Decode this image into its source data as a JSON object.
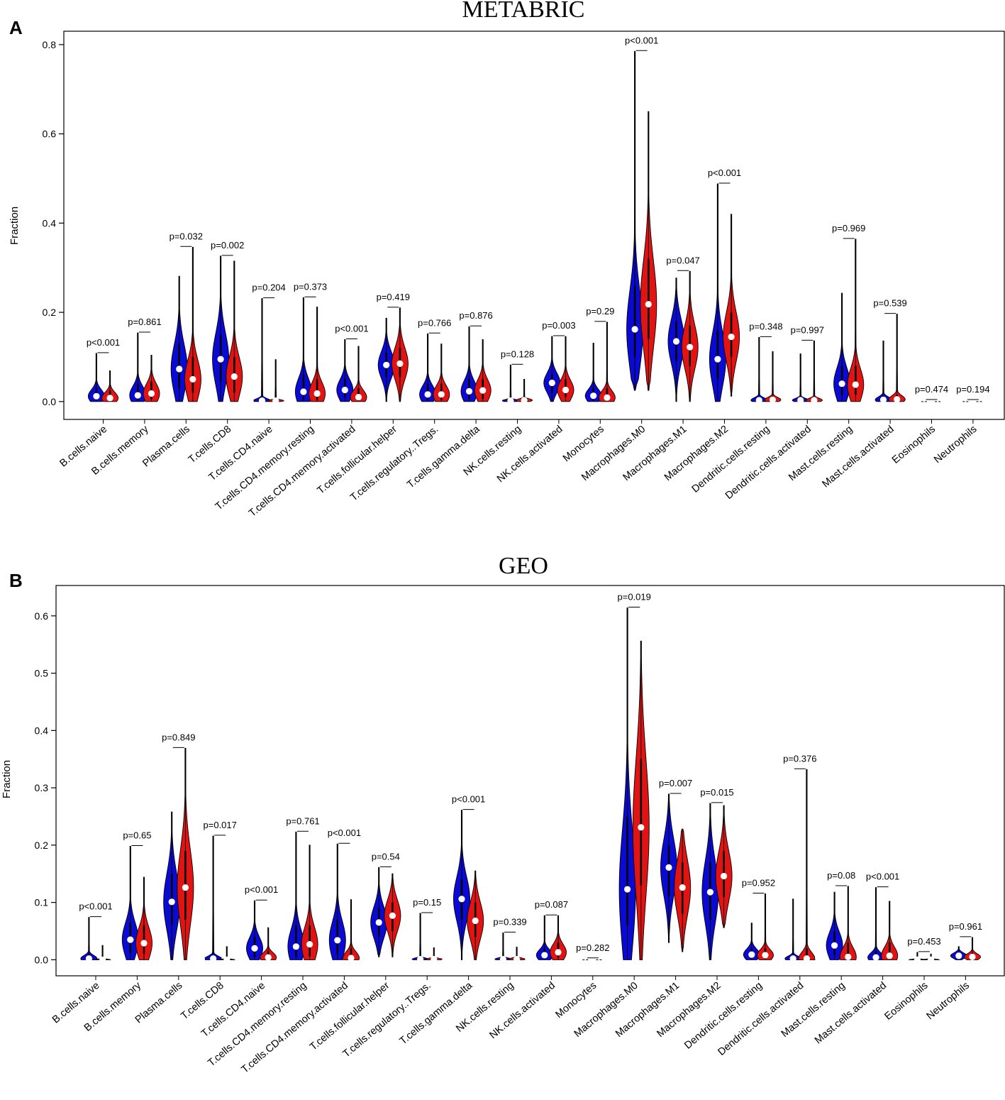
{
  "chart_data": [
    {
      "type": "violin",
      "panel": "A",
      "title": "METABRIC",
      "xlabel": "",
      "ylabel": "Fraction",
      "ylim": [
        -0.04,
        0.83
      ],
      "yticks": [
        0.0,
        0.2,
        0.4,
        0.6,
        0.8
      ],
      "ytick_labels": [
        "0.0",
        "0.2",
        "0.4",
        "0.6",
        "0.8"
      ],
      "series_colors": {
        "group1": "#0a0ad2",
        "group2": "#e21313"
      },
      "categories": [
        {
          "name": "B.cells.naive",
          "p": "p<0.001",
          "g1": {
            "max": 0.108,
            "med": 0.012,
            "q1": 0.003,
            "q3": 0.03
          },
          "g2": {
            "max": 0.069,
            "med": 0.008,
            "q1": 0.002,
            "q3": 0.025
          }
        },
        {
          "name": "B.cells.memory",
          "p": "p=0.861",
          "g1": {
            "max": 0.154,
            "med": 0.014,
            "q1": 0.003,
            "q3": 0.04
          },
          "g2": {
            "max": 0.104,
            "med": 0.018,
            "q1": 0.005,
            "q3": 0.045
          }
        },
        {
          "name": "Plasma.cells",
          "p": "p=0.032",
          "g1": {
            "max": 0.281,
            "med": 0.073,
            "q1": 0.03,
            "q3": 0.13
          },
          "g2": {
            "max": 0.346,
            "med": 0.05,
            "q1": 0.02,
            "q3": 0.1
          }
        },
        {
          "name": "T.cells.CD8",
          "p": "p=0.002",
          "g1": {
            "max": 0.326,
            "med": 0.095,
            "q1": 0.045,
            "q3": 0.15
          },
          "g2": {
            "max": 0.315,
            "med": 0.056,
            "q1": 0.02,
            "q3": 0.1
          }
        },
        {
          "name": "T.cells.CD4.naive",
          "p": "p=0.204",
          "g1": {
            "max": 0.231,
            "med": 0.002,
            "q1": 0.0,
            "q3": 0.005
          },
          "g2": {
            "max": 0.094,
            "med": 0.002,
            "q1": 0.0,
            "q3": 0.004
          }
        },
        {
          "name": "T.cells.CD4.memory.resting",
          "p": "p=0.373",
          "g1": {
            "max": 0.233,
            "med": 0.022,
            "q1": 0.005,
            "q3": 0.06
          },
          "g2": {
            "max": 0.212,
            "med": 0.018,
            "q1": 0.004,
            "q3": 0.05
          }
        },
        {
          "name": "T.cells.CD4.memory.activated",
          "p": "p<0.001",
          "g1": {
            "max": 0.139,
            "med": 0.026,
            "q1": 0.008,
            "q3": 0.05
          },
          "g2": {
            "max": 0.124,
            "med": 0.01,
            "q1": 0.002,
            "q3": 0.03
          }
        },
        {
          "name": "T.cells.follicular.helper",
          "p": "p=0.419",
          "g1": {
            "max": 0.187,
            "med": 0.082,
            "q1": 0.055,
            "q3": 0.11
          },
          "g2": {
            "max": 0.21,
            "med": 0.085,
            "q1": 0.055,
            "q3": 0.12
          }
        },
        {
          "name": "T.cells.regulatory..Tregs.",
          "p": "p=0.766",
          "g1": {
            "max": 0.152,
            "med": 0.016,
            "q1": 0.004,
            "q3": 0.04
          },
          "g2": {
            "max": 0.129,
            "med": 0.016,
            "q1": 0.004,
            "q3": 0.04
          }
        },
        {
          "name": "T.cells.gamma.delta",
          "p": "p=0.876",
          "g1": {
            "max": 0.168,
            "med": 0.023,
            "q1": 0.006,
            "q3": 0.05
          },
          "g2": {
            "max": 0.139,
            "med": 0.025,
            "q1": 0.006,
            "q3": 0.05
          }
        },
        {
          "name": "NK.cells.resting",
          "p": "p=0.128",
          "g1": {
            "max": 0.082,
            "med": 0.002,
            "q1": 0.0,
            "q3": 0.005
          },
          "g2": {
            "max": 0.05,
            "med": 0.003,
            "q1": 0.0,
            "q3": 0.006
          }
        },
        {
          "name": "NK.cells.activated",
          "p": "p=0.003",
          "g1": {
            "max": 0.146,
            "med": 0.042,
            "q1": 0.02,
            "q3": 0.06
          },
          "g2": {
            "max": 0.146,
            "med": 0.026,
            "q1": 0.01,
            "q3": 0.05
          }
        },
        {
          "name": "Monocytes",
          "p": "p=0.29",
          "g1": {
            "max": 0.131,
            "med": 0.013,
            "q1": 0.003,
            "q3": 0.03
          },
          "g2": {
            "max": 0.178,
            "med": 0.009,
            "q1": 0.002,
            "q3": 0.03
          }
        },
        {
          "name": "Macrophages.M0",
          "p": "p<0.001",
          "g1": {
            "min": 0.025,
            "max": 0.785,
            "med": 0.162,
            "q1": 0.1,
            "q3": 0.26
          },
          "g2": {
            "min": 0.025,
            "max": 0.65,
            "med": 0.218,
            "q1": 0.14,
            "q3": 0.32
          }
        },
        {
          "name": "Macrophages.M1",
          "p": "p=0.047",
          "g1": {
            "max": 0.277,
            "med": 0.135,
            "q1": 0.09,
            "q3": 0.18
          },
          "g2": {
            "max": 0.292,
            "med": 0.122,
            "q1": 0.08,
            "q3": 0.17
          }
        },
        {
          "name": "Macrophages.M2",
          "p": "p<0.001",
          "g1": {
            "max": 0.488,
            "med": 0.095,
            "q1": 0.05,
            "q3": 0.16
          },
          "g2": {
            "min": 0.012,
            "max": 0.42,
            "med": 0.145,
            "q1": 0.1,
            "q3": 0.2
          }
        },
        {
          "name": "Dendritic.cells.resting",
          "p": "p=0.348",
          "g1": {
            "max": 0.144,
            "med": 0.003,
            "q1": 0.0,
            "q3": 0.01
          },
          "g2": {
            "max": 0.112,
            "med": 0.004,
            "q1": 0.0,
            "q3": 0.01
          }
        },
        {
          "name": "Dendritic.cells.activated",
          "p": "p=0.997",
          "g1": {
            "max": 0.107,
            "med": 0.003,
            "q1": 0.0,
            "q3": 0.008
          },
          "g2": {
            "max": 0.136,
            "med": 0.003,
            "q1": 0.0,
            "q3": 0.008
          }
        },
        {
          "name": "Mast.cells.resting",
          "p": "p=0.969",
          "g1": {
            "max": 0.243,
            "med": 0.04,
            "q1": 0.015,
            "q3": 0.08
          },
          "g2": {
            "max": 0.364,
            "med": 0.038,
            "q1": 0.015,
            "q3": 0.08
          }
        },
        {
          "name": "Mast.cells.activated",
          "p": "p=0.539",
          "g1": {
            "max": 0.136,
            "med": 0.004,
            "q1": 0.0,
            "q3": 0.012
          },
          "g2": {
            "max": 0.196,
            "med": 0.005,
            "q1": 0.0,
            "q3": 0.015
          }
        },
        {
          "name": "Eosinophils",
          "p": "p=0.474",
          "g1": {
            "max": 0.003,
            "med": 0.0,
            "q1": 0.0,
            "q3": 0.001
          },
          "g2": {
            "max": 0.003,
            "med": 0.0,
            "q1": 0.0,
            "q3": 0.001
          }
        },
        {
          "name": "Neutrophils",
          "p": "p=0.194",
          "g1": {
            "max": 0.003,
            "med": 0.0,
            "q1": 0.0,
            "q3": 0.001
          },
          "g2": {
            "max": 0.003,
            "med": 0.0,
            "q1": 0.0,
            "q3": 0.001
          }
        }
      ]
    },
    {
      "type": "violin",
      "panel": "B",
      "title": "GEO",
      "xlabel": "",
      "ylabel": "Fraction",
      "ylim": [
        -0.028,
        0.653
      ],
      "yticks": [
        0.0,
        0.1,
        0.2,
        0.3,
        0.4,
        0.5,
        0.6
      ],
      "ytick_labels": [
        "0.0",
        "0.1",
        "0.2",
        "0.3",
        "0.4",
        "0.5",
        "0.6"
      ],
      "series_colors": {
        "group1": "#0a0ad2",
        "group2": "#e21313"
      },
      "categories": [
        {
          "name": "B.cells.naive",
          "p": "p<0.001",
          "g1": {
            "max": 0.074,
            "med": 0.002,
            "q1": 0.0,
            "q3": 0.01
          },
          "g2": {
            "max": 0.025,
            "med": 0.0,
            "q1": 0.0,
            "q3": 0.002
          }
        },
        {
          "name": "B.cells.memory",
          "p": "p=0.65",
          "g1": {
            "max": 0.198,
            "med": 0.035,
            "q1": 0.012,
            "q3": 0.065
          },
          "g2": {
            "max": 0.144,
            "med": 0.029,
            "q1": 0.01,
            "q3": 0.06
          }
        },
        {
          "name": "Plasma.cells",
          "p": "p=0.849",
          "g1": {
            "max": 0.258,
            "med": 0.101,
            "q1": 0.06,
            "q3": 0.15
          },
          "g2": {
            "max": 0.369,
            "med": 0.126,
            "q1": 0.07,
            "q3": 0.19
          }
        },
        {
          "name": "T.cells.CD8",
          "p": "p=0.017",
          "g1": {
            "max": 0.216,
            "med": 0.002,
            "q1": 0.0,
            "q3": 0.006
          },
          "g2": {
            "max": 0.023,
            "med": 0.0,
            "q1": 0.0,
            "q3": 0.002
          }
        },
        {
          "name": "T.cells.CD4.naive",
          "p": "p<0.001",
          "g1": {
            "max": 0.103,
            "med": 0.02,
            "q1": 0.005,
            "q3": 0.04
          },
          "g2": {
            "max": 0.056,
            "med": 0.004,
            "q1": 0.0,
            "q3": 0.015
          }
        },
        {
          "name": "T.cells.CD4.memory.resting",
          "p": "p=0.761",
          "g1": {
            "max": 0.223,
            "med": 0.023,
            "q1": 0.005,
            "q3": 0.06
          },
          "g2": {
            "max": 0.2,
            "med": 0.027,
            "q1": 0.006,
            "q3": 0.06
          }
        },
        {
          "name": "T.cells.CD4.memory.activated",
          "p": "p<0.001",
          "g1": {
            "max": 0.202,
            "med": 0.034,
            "q1": 0.01,
            "q3": 0.07
          },
          "g2": {
            "max": 0.105,
            "med": 0.003,
            "q1": 0.0,
            "q3": 0.02
          }
        },
        {
          "name": "T.cells.follicular.helper",
          "p": "p=0.54",
          "g1": {
            "min": 0.005,
            "max": 0.161,
            "med": 0.065,
            "q1": 0.04,
            "q3": 0.09
          },
          "g2": {
            "min": 0.005,
            "max": 0.15,
            "med": 0.077,
            "q1": 0.05,
            "q3": 0.1
          }
        },
        {
          "name": "T.cells.regulatory..Tregs.",
          "p": "p=0.15",
          "g1": {
            "max": 0.081,
            "med": 0.001,
            "q1": 0.0,
            "q3": 0.004
          },
          "g2": {
            "max": 0.021,
            "med": 0.001,
            "q1": 0.0,
            "q3": 0.003
          }
        },
        {
          "name": "T.cells.gamma.delta",
          "p": "p<0.001",
          "g1": {
            "max": 0.261,
            "med": 0.106,
            "q1": 0.07,
            "q3": 0.14
          },
          "g2": {
            "max": 0.155,
            "med": 0.068,
            "q1": 0.04,
            "q3": 0.1
          }
        },
        {
          "name": "NK.cells.resting",
          "p": "p=0.339",
          "g1": {
            "max": 0.047,
            "med": 0.001,
            "q1": 0.0,
            "q3": 0.004
          },
          "g2": {
            "max": 0.022,
            "med": 0.001,
            "q1": 0.0,
            "q3": 0.004
          }
        },
        {
          "name": "NK.cells.activated",
          "p": "p=0.087",
          "g1": {
            "max": 0.077,
            "med": 0.008,
            "q1": 0.002,
            "q3": 0.02
          },
          "g2": {
            "max": 0.077,
            "med": 0.013,
            "q1": 0.004,
            "q3": 0.03
          }
        },
        {
          "name": "Monocytes",
          "p": "p=0.282",
          "g1": {
            "max": 0.002,
            "med": 0.0,
            "q1": 0.0,
            "q3": 0.001
          },
          "g2": {
            "max": 0.002,
            "med": 0.0,
            "q1": 0.0,
            "q3": 0.001
          }
        },
        {
          "name": "Macrophages.M0",
          "p": "p=0.019",
          "g1": {
            "max": 0.614,
            "med": 0.123,
            "q1": 0.06,
            "q3": 0.25
          },
          "g2": {
            "max": 0.556,
            "med": 0.231,
            "q1": 0.13,
            "q3": 0.35
          }
        },
        {
          "name": "Macrophages.M1",
          "p": "p=0.007",
          "g1": {
            "min": 0.03,
            "max": 0.289,
            "med": 0.161,
            "q1": 0.11,
            "q3": 0.2
          },
          "g2": {
            "min": 0.014,
            "max": 0.228,
            "med": 0.126,
            "q1": 0.08,
            "q3": 0.17
          }
        },
        {
          "name": "Macrophages.M2",
          "p": "p=0.015",
          "g1": {
            "max": 0.273,
            "med": 0.118,
            "q1": 0.07,
            "q3": 0.17
          },
          "g2": {
            "min": 0.056,
            "max": 0.269,
            "med": 0.146,
            "q1": 0.11,
            "q3": 0.19
          }
        },
        {
          "name": "Dendritic.cells.resting",
          "p": "p=0.952",
          "g1": {
            "max": 0.064,
            "med": 0.009,
            "q1": 0.002,
            "q3": 0.02
          },
          "g2": {
            "max": 0.115,
            "med": 0.008,
            "q1": 0.002,
            "q3": 0.02
          }
        },
        {
          "name": "Dendritic.cells.activated",
          "p": "p=0.376",
          "g1": {
            "max": 0.106,
            "med": 0.002,
            "q1": 0.0,
            "q3": 0.008
          },
          "g2": {
            "max": 0.332,
            "med": 0.002,
            "q1": 0.0,
            "q3": 0.02
          }
        },
        {
          "name": "Mast.cells.resting",
          "p": "p=0.08",
          "g1": {
            "max": 0.118,
            "med": 0.025,
            "q1": 0.008,
            "q3": 0.05
          },
          "g2": {
            "max": 0.128,
            "med": 0.005,
            "q1": 0.0,
            "q3": 0.03
          }
        },
        {
          "name": "Mast.cells.activated",
          "p": "p<0.001",
          "g1": {
            "max": 0.126,
            "med": 0.004,
            "q1": 0.0,
            "q3": 0.015
          },
          "g2": {
            "max": 0.102,
            "med": 0.007,
            "q1": 0.002,
            "q3": 0.03
          }
        },
        {
          "name": "Eosinophils",
          "p": "p=0.453",
          "g1": {
            "max": 0.013,
            "med": 0.0,
            "q1": 0.0,
            "q3": 0.002
          },
          "g2": {
            "max": 0.01,
            "med": 0.0,
            "q1": 0.0,
            "q3": 0.002
          }
        },
        {
          "name": "Neutrophils",
          "p": "p=0.961",
          "g1": {
            "max": 0.023,
            "med": 0.007,
            "q1": 0.003,
            "q3": 0.012
          },
          "g2": {
            "max": 0.039,
            "med": 0.005,
            "q1": 0.002,
            "q3": 0.012
          }
        }
      ]
    }
  ]
}
